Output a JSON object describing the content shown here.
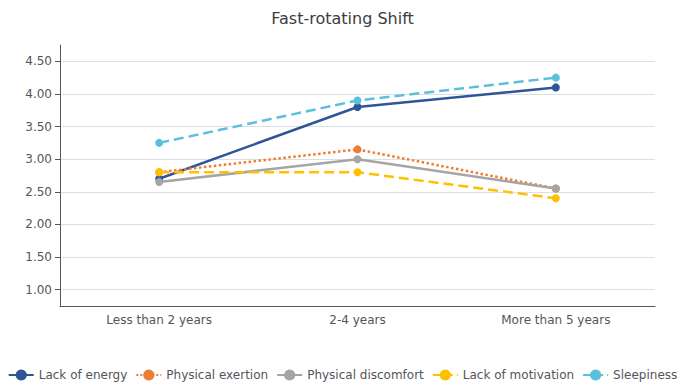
{
  "chart_data": {
    "type": "line",
    "title": "Fast-rotating Shift",
    "categories": [
      "Less than 2 years",
      "2-4 years",
      "More than 5 years"
    ],
    "series": [
      {
        "name": "Lack of energy",
        "color": "#2F5597",
        "values": [
          2.7,
          3.8,
          4.1
        ],
        "line_style": "solid",
        "marker": "circle"
      },
      {
        "name": "Physical exertion",
        "color": "#ED7D31",
        "values": [
          2.8,
          3.15,
          2.55
        ],
        "line_style": "dotted",
        "marker": "circle"
      },
      {
        "name": "Physical discomfort",
        "color": "#A5A5A5",
        "values": [
          2.65,
          3.0,
          2.55
        ],
        "line_style": "solid",
        "marker": "circle"
      },
      {
        "name": "Lack of motivation",
        "color": "#FFC000",
        "values": [
          2.8,
          2.8,
          2.4
        ],
        "line_style": "dashed",
        "marker": "circle"
      },
      {
        "name": "Sleepiness",
        "color": "#5BC0DE",
        "values": [
          3.25,
          3.9,
          4.25
        ],
        "line_style": "dashed",
        "marker": "circle"
      }
    ],
    "ylim": [
      0.75,
      4.75
    ],
    "yticks": [
      {
        "value": 1.0,
        "label": "1.00"
      },
      {
        "value": 1.5,
        "label": "1.50"
      },
      {
        "value": 2.0,
        "label": "2.00"
      },
      {
        "value": 2.5,
        "label": "2.50"
      },
      {
        "value": 3.0,
        "label": "3.00"
      },
      {
        "value": 3.5,
        "label": "3.50"
      },
      {
        "value": 4.0,
        "label": "4.00"
      },
      {
        "value": 4.5,
        "label": "4.50"
      }
    ],
    "grid": true,
    "legend": "bottom"
  }
}
